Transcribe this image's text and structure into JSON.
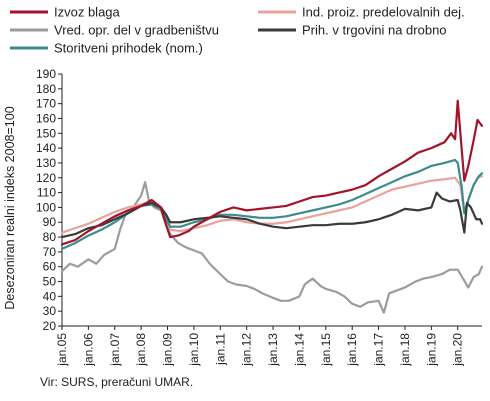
{
  "chart_data": {
    "type": "line",
    "title": "",
    "xlabel": "",
    "ylabel": "Desezoniran realni indeks 2008=100",
    "ylim": [
      20,
      190
    ],
    "yticks": [
      20,
      30,
      40,
      50,
      60,
      70,
      80,
      90,
      100,
      110,
      120,
      130,
      140,
      150,
      160,
      170,
      180,
      190
    ],
    "xlim": [
      2005,
      2020.92
    ],
    "xticks": [
      "jan.05",
      "jan.06",
      "jan.07",
      "jan.08",
      "jan.09",
      "jan.10",
      "jan.11",
      "jan.12",
      "jan.13",
      "jan.14",
      "jan.15",
      "jan.16",
      "jan.17",
      "jan.18",
      "jan.19",
      "jan.20"
    ],
    "legend_position": "top",
    "grid": false,
    "series": [
      {
        "name": "Izvoz blaga",
        "color": "#a3132a",
        "points": [
          [
            2005.0,
            75
          ],
          [
            2005.5,
            78
          ],
          [
            2006.0,
            84
          ],
          [
            2006.5,
            89
          ],
          [
            2007.0,
            94
          ],
          [
            2007.5,
            98
          ],
          [
            2008.0,
            101
          ],
          [
            2008.4,
            105
          ],
          [
            2008.75,
            100
          ],
          [
            2008.95,
            88
          ],
          [
            2009.1,
            80
          ],
          [
            2009.4,
            81
          ],
          [
            2009.8,
            84
          ],
          [
            2010.0,
            87
          ],
          [
            2010.5,
            92
          ],
          [
            2011.0,
            97
          ],
          [
            2011.5,
            100
          ],
          [
            2012.0,
            98
          ],
          [
            2012.5,
            99
          ],
          [
            2013.0,
            100
          ],
          [
            2013.5,
            101
          ],
          [
            2014.0,
            104
          ],
          [
            2014.5,
            107
          ],
          [
            2015.0,
            108
          ],
          [
            2015.5,
            110
          ],
          [
            2016.0,
            112
          ],
          [
            2016.5,
            115
          ],
          [
            2017.0,
            121
          ],
          [
            2017.5,
            126
          ],
          [
            2018.0,
            131
          ],
          [
            2018.5,
            137
          ],
          [
            2019.0,
            140
          ],
          [
            2019.5,
            144
          ],
          [
            2019.75,
            150
          ],
          [
            2019.9,
            146
          ],
          [
            2020.0,
            172
          ],
          [
            2020.1,
            150
          ],
          [
            2020.25,
            118
          ],
          [
            2020.4,
            128
          ],
          [
            2020.6,
            145
          ],
          [
            2020.75,
            159
          ],
          [
            2020.92,
            155
          ]
        ]
      },
      {
        "name": "Ind. proiz. predelovalnih dej.",
        "color": "#e8a29c",
        "points": [
          [
            2005.0,
            83
          ],
          [
            2005.5,
            86
          ],
          [
            2006.0,
            89
          ],
          [
            2006.5,
            93
          ],
          [
            2007.0,
            97
          ],
          [
            2007.5,
            100
          ],
          [
            2008.0,
            102
          ],
          [
            2008.4,
            104
          ],
          [
            2008.75,
            100
          ],
          [
            2008.95,
            92
          ],
          [
            2009.1,
            85
          ],
          [
            2009.5,
            84
          ],
          [
            2010.0,
            86
          ],
          [
            2010.5,
            88
          ],
          [
            2011.0,
            91
          ],
          [
            2011.5,
            92
          ],
          [
            2012.0,
            90
          ],
          [
            2012.5,
            89
          ],
          [
            2013.0,
            89
          ],
          [
            2013.5,
            90
          ],
          [
            2014.0,
            92
          ],
          [
            2014.5,
            94
          ],
          [
            2015.0,
            96
          ],
          [
            2015.5,
            98
          ],
          [
            2016.0,
            100
          ],
          [
            2016.5,
            104
          ],
          [
            2017.0,
            108
          ],
          [
            2017.5,
            112
          ],
          [
            2018.0,
            114
          ],
          [
            2018.5,
            116
          ],
          [
            2019.0,
            118
          ],
          [
            2019.5,
            119
          ],
          [
            2019.9,
            120
          ],
          [
            2020.1,
            115
          ],
          [
            2020.25,
            97
          ],
          [
            2020.4,
            105
          ],
          [
            2020.6,
            115
          ],
          [
            2020.75,
            120
          ],
          [
            2020.92,
            121
          ]
        ]
      },
      {
        "name": "Vred. opr. del v gradbeništvu",
        "color": "#9c9c9c",
        "points": [
          [
            2005.0,
            57
          ],
          [
            2005.3,
            62
          ],
          [
            2005.6,
            60
          ],
          [
            2006.0,
            65
          ],
          [
            2006.3,
            62
          ],
          [
            2006.6,
            68
          ],
          [
            2007.0,
            72
          ],
          [
            2007.2,
            85
          ],
          [
            2007.4,
            95
          ],
          [
            2007.7,
            100
          ],
          [
            2008.0,
            108
          ],
          [
            2008.15,
            117
          ],
          [
            2008.3,
            104
          ],
          [
            2008.5,
            100
          ],
          [
            2008.75,
            98
          ],
          [
            2008.95,
            88
          ],
          [
            2009.1,
            82
          ],
          [
            2009.4,
            76
          ],
          [
            2009.7,
            73
          ],
          [
            2010.0,
            71
          ],
          [
            2010.3,
            69
          ],
          [
            2010.6,
            62
          ],
          [
            2011.0,
            55
          ],
          [
            2011.3,
            50
          ],
          [
            2011.6,
            48
          ],
          [
            2012.0,
            47
          ],
          [
            2012.3,
            45
          ],
          [
            2012.6,
            42
          ],
          [
            2013.0,
            39
          ],
          [
            2013.3,
            37
          ],
          [
            2013.6,
            37
          ],
          [
            2014.0,
            40
          ],
          [
            2014.2,
            48
          ],
          [
            2014.5,
            52
          ],
          [
            2014.8,
            47
          ],
          [
            2015.0,
            45
          ],
          [
            2015.4,
            43
          ],
          [
            2015.7,
            40
          ],
          [
            2016.0,
            35
          ],
          [
            2016.3,
            33
          ],
          [
            2016.6,
            36
          ],
          [
            2017.0,
            37
          ],
          [
            2017.2,
            29
          ],
          [
            2017.4,
            42
          ],
          [
            2017.7,
            44
          ],
          [
            2018.0,
            46
          ],
          [
            2018.4,
            50
          ],
          [
            2018.7,
            52
          ],
          [
            2019.0,
            53
          ],
          [
            2019.4,
            55
          ],
          [
            2019.7,
            58
          ],
          [
            2020.0,
            58
          ],
          [
            2020.2,
            52
          ],
          [
            2020.4,
            46
          ],
          [
            2020.6,
            53
          ],
          [
            2020.8,
            55
          ],
          [
            2020.92,
            60
          ]
        ]
      },
      {
        "name": "Prih. v trgovini na drobno",
        "color": "#3a3a3a",
        "points": [
          [
            2005.0,
            80
          ],
          [
            2005.5,
            82
          ],
          [
            2006.0,
            86
          ],
          [
            2006.5,
            88
          ],
          [
            2007.0,
            92
          ],
          [
            2007.5,
            96
          ],
          [
            2008.0,
            101
          ],
          [
            2008.4,
            103
          ],
          [
            2008.75,
            100
          ],
          [
            2008.95,
            95
          ],
          [
            2009.1,
            90
          ],
          [
            2009.5,
            90
          ],
          [
            2010.0,
            92
          ],
          [
            2010.5,
            93
          ],
          [
            2011.0,
            94
          ],
          [
            2011.5,
            93
          ],
          [
            2012.0,
            92
          ],
          [
            2012.5,
            89
          ],
          [
            2013.0,
            87
          ],
          [
            2013.5,
            86
          ],
          [
            2014.0,
            87
          ],
          [
            2014.5,
            88
          ],
          [
            2015.0,
            88
          ],
          [
            2015.5,
            89
          ],
          [
            2016.0,
            89
          ],
          [
            2016.5,
            90
          ],
          [
            2017.0,
            92
          ],
          [
            2017.5,
            95
          ],
          [
            2018.0,
            99
          ],
          [
            2018.5,
            98
          ],
          [
            2019.0,
            100
          ],
          [
            2019.2,
            110
          ],
          [
            2019.4,
            106
          ],
          [
            2019.7,
            104
          ],
          [
            2020.0,
            105
          ],
          [
            2020.1,
            98
          ],
          [
            2020.25,
            83
          ],
          [
            2020.35,
            103
          ],
          [
            2020.5,
            100
          ],
          [
            2020.7,
            92
          ],
          [
            2020.85,
            92
          ],
          [
            2020.92,
            89
          ]
        ]
      },
      {
        "name": "Storitveni prihodek (nom.)",
        "color": "#3b8c8f",
        "points": [
          [
            2005.0,
            72
          ],
          [
            2005.5,
            76
          ],
          [
            2006.0,
            81
          ],
          [
            2006.5,
            85
          ],
          [
            2007.0,
            90
          ],
          [
            2007.5,
            96
          ],
          [
            2008.0,
            101
          ],
          [
            2008.4,
            102
          ],
          [
            2008.75,
            99
          ],
          [
            2008.95,
            92
          ],
          [
            2009.1,
            87
          ],
          [
            2009.5,
            87
          ],
          [
            2010.0,
            90
          ],
          [
            2010.5,
            92
          ],
          [
            2011.0,
            95
          ],
          [
            2011.5,
            95
          ],
          [
            2012.0,
            94
          ],
          [
            2012.5,
            93
          ],
          [
            2013.0,
            93
          ],
          [
            2013.5,
            94
          ],
          [
            2014.0,
            96
          ],
          [
            2014.5,
            98
          ],
          [
            2015.0,
            100
          ],
          [
            2015.5,
            102
          ],
          [
            2016.0,
            105
          ],
          [
            2016.5,
            109
          ],
          [
            2017.0,
            113
          ],
          [
            2017.5,
            117
          ],
          [
            2018.0,
            121
          ],
          [
            2018.5,
            124
          ],
          [
            2019.0,
            128
          ],
          [
            2019.5,
            130
          ],
          [
            2019.9,
            132
          ],
          [
            2020.0,
            130
          ],
          [
            2020.15,
            114
          ],
          [
            2020.25,
            96
          ],
          [
            2020.4,
            105
          ],
          [
            2020.6,
            115
          ],
          [
            2020.8,
            121
          ],
          [
            2020.92,
            123
          ]
        ]
      }
    ]
  },
  "source_note": "Vir: SURS, preračuni UMAR."
}
